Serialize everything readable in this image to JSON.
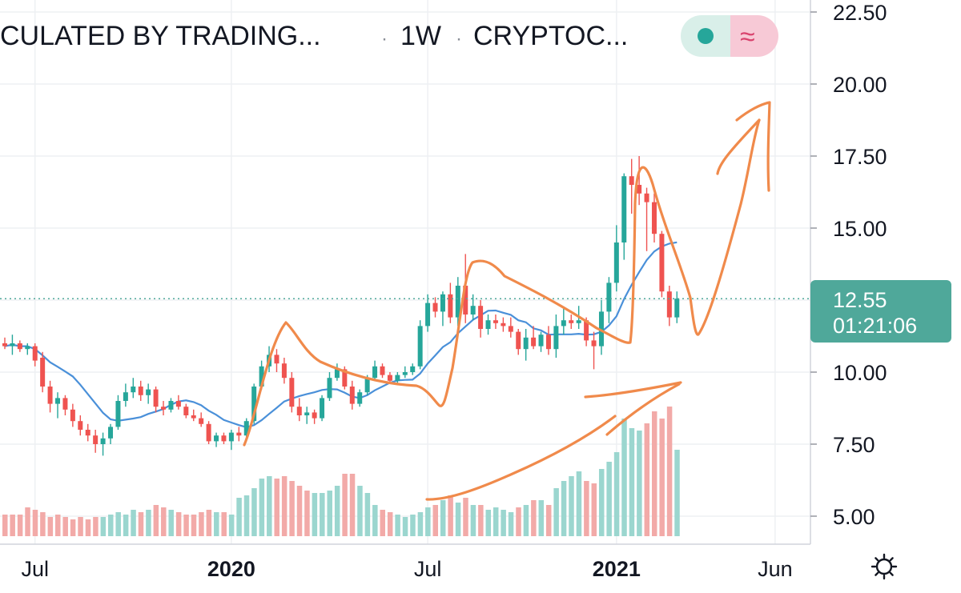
{
  "header": {
    "title_fragment": "CULATED BY TRADING...",
    "sep1": "·",
    "interval": "1W",
    "sep2": "·",
    "exchange_fragment": "CRYPTOC...",
    "toggle_icon_glyph": "≈"
  },
  "price_label": {
    "value": "12.55",
    "countdown": "01:21:06"
  },
  "settings_icon": "gear-icon",
  "colors": {
    "up": "#26a69a",
    "down": "#ef5350",
    "up_volume": "#9bd6cf",
    "down_volume": "#f2aaa8",
    "ma_line": "#4a90d9",
    "annotation": "#f08a4b",
    "price_badge": "#4fa89a",
    "grid": "#eef0f3"
  },
  "chart_data": {
    "type": "candlestick",
    "interval": "1W",
    "ylim": [
      4.2,
      23.2
    ],
    "y_ticks": [
      5.0,
      7.5,
      10.0,
      12.5,
      15.0,
      17.5,
      20.0,
      22.5
    ],
    "y_tick_labels": [
      "5.00",
      "7.50",
      "10.00",
      "",
      "15.00",
      "17.50",
      "20.00",
      "22.50"
    ],
    "x_ticks": [
      {
        "label": "Jul",
        "bold": false,
        "bar": 4
      },
      {
        "label": "2020",
        "bold": true,
        "bar": 30
      },
      {
        "label": "Jul",
        "bold": false,
        "bar": 56
      },
      {
        "label": "2021",
        "bold": true,
        "bar": 81
      },
      {
        "label": "Jun",
        "bold": false,
        "bar": 102
      }
    ],
    "last_price": 12.55,
    "candles": [
      [
        11.0,
        11.2,
        10.8,
        10.9
      ],
      [
        10.9,
        11.3,
        10.6,
        11.0
      ],
      [
        11.0,
        11.1,
        10.7,
        10.8
      ],
      [
        10.8,
        11.0,
        10.6,
        10.9
      ],
      [
        10.9,
        11.0,
        10.2,
        10.4
      ],
      [
        10.5,
        10.7,
        9.3,
        9.5
      ],
      [
        9.5,
        9.7,
        8.6,
        8.9
      ],
      [
        8.9,
        9.3,
        8.4,
        9.1
      ],
      [
        9.1,
        9.2,
        8.5,
        8.7
      ],
      [
        8.7,
        8.9,
        8.1,
        8.3
      ],
      [
        8.3,
        8.5,
        7.8,
        8.0
      ],
      [
        8.0,
        8.2,
        7.6,
        7.8
      ],
      [
        7.8,
        8.0,
        7.2,
        7.5
      ],
      [
        7.5,
        7.9,
        7.1,
        7.7
      ],
      [
        7.7,
        8.2,
        7.5,
        8.1
      ],
      [
        8.1,
        9.2,
        8.0,
        9.0
      ],
      [
        9.0,
        9.6,
        8.8,
        9.3
      ],
      [
        9.3,
        9.8,
        9.1,
        9.5
      ],
      [
        9.5,
        9.7,
        9.0,
        9.2
      ],
      [
        9.2,
        9.6,
        8.9,
        9.4
      ],
      [
        9.4,
        9.5,
        8.6,
        8.8
      ],
      [
        8.8,
        9.0,
        8.5,
        8.7
      ],
      [
        8.7,
        9.1,
        8.6,
        9.0
      ],
      [
        9.0,
        9.2,
        8.7,
        8.8
      ],
      [
        8.8,
        8.9,
        8.4,
        8.5
      ],
      [
        8.5,
        8.7,
        8.3,
        8.4
      ],
      [
        8.4,
        8.6,
        8.1,
        8.2
      ],
      [
        8.2,
        8.3,
        7.5,
        7.6
      ],
      [
        7.6,
        7.9,
        7.4,
        7.8
      ],
      [
        7.8,
        7.9,
        7.5,
        7.6
      ],
      [
        7.6,
        8.0,
        7.3,
        7.9
      ],
      [
        7.9,
        8.1,
        7.6,
        7.8
      ],
      [
        7.8,
        8.4,
        7.7,
        8.3
      ],
      [
        8.3,
        9.6,
        8.2,
        9.5
      ],
      [
        9.5,
        10.4,
        9.4,
        10.2
      ],
      [
        10.2,
        10.9,
        10.0,
        10.6
      ],
      [
        10.6,
        10.8,
        10.0,
        10.3
      ],
      [
        10.3,
        10.5,
        9.6,
        9.8
      ],
      [
        9.8,
        10.0,
        8.6,
        8.8
      ],
      [
        8.8,
        9.1,
        8.3,
        8.5
      ],
      [
        8.5,
        8.8,
        8.2,
        8.6
      ],
      [
        8.6,
        8.7,
        8.2,
        8.4
      ],
      [
        8.4,
        9.2,
        8.3,
        9.1
      ],
      [
        9.1,
        10.0,
        9.0,
        9.8
      ],
      [
        9.8,
        10.3,
        9.7,
        10.1
      ],
      [
        10.1,
        10.2,
        9.4,
        9.5
      ],
      [
        9.5,
        9.7,
        8.7,
        8.9
      ],
      [
        8.9,
        9.4,
        8.8,
        9.3
      ],
      [
        9.3,
        9.9,
        9.2,
        9.8
      ],
      [
        9.8,
        10.4,
        9.7,
        10.2
      ],
      [
        10.2,
        10.3,
        9.8,
        9.9
      ],
      [
        9.9,
        10.0,
        9.6,
        9.7
      ],
      [
        9.7,
        10.0,
        9.6,
        9.9
      ],
      [
        9.9,
        10.2,
        9.8,
        10.0
      ],
      [
        10.0,
        10.3,
        9.9,
        10.2
      ],
      [
        10.2,
        11.8,
        10.1,
        11.6
      ],
      [
        11.6,
        12.7,
        11.4,
        12.4
      ],
      [
        12.4,
        12.6,
        11.9,
        12.1
      ],
      [
        12.1,
        12.8,
        11.6,
        12.7
      ],
      [
        12.7,
        13.1,
        11.7,
        11.9
      ],
      [
        11.9,
        13.3,
        11.6,
        13.0
      ],
      [
        13.0,
        14.1,
        11.7,
        12.0
      ],
      [
        12.0,
        12.7,
        11.8,
        12.3
      ],
      [
        12.3,
        12.5,
        11.2,
        11.5
      ],
      [
        11.5,
        12.0,
        11.3,
        11.8
      ],
      [
        11.8,
        12.0,
        11.5,
        11.7
      ],
      [
        11.7,
        11.9,
        11.4,
        11.6
      ],
      [
        11.6,
        11.9,
        11.2,
        11.4
      ],
      [
        11.4,
        11.5,
        10.6,
        10.8
      ],
      [
        10.8,
        11.5,
        10.4,
        11.2
      ],
      [
        11.2,
        11.6,
        10.8,
        10.9
      ],
      [
        10.9,
        11.4,
        10.7,
        11.3
      ],
      [
        11.3,
        11.6,
        10.6,
        10.8
      ],
      [
        10.8,
        12.0,
        10.5,
        11.6
      ],
      [
        11.6,
        12.2,
        11.3,
        11.8
      ],
      [
        11.8,
        12.0,
        11.5,
        11.7
      ],
      [
        11.7,
        12.3,
        11.5,
        11.8
      ],
      [
        11.8,
        11.9,
        10.9,
        11.1
      ],
      [
        11.1,
        11.4,
        10.1,
        10.9
      ],
      [
        10.9,
        12.5,
        10.6,
        12.1
      ],
      [
        12.1,
        13.3,
        11.7,
        13.1
      ],
      [
        13.1,
        15.1,
        12.8,
        14.5
      ],
      [
        14.5,
        16.9,
        13.9,
        16.8
      ],
      [
        16.8,
        17.4,
        15.5,
        16.5
      ],
      [
        16.5,
        17.5,
        15.8,
        16.2
      ],
      [
        16.2,
        16.4,
        14.2,
        15.9
      ],
      [
        15.9,
        16.2,
        14.5,
        14.8
      ],
      [
        14.8,
        14.9,
        12.6,
        12.8
      ],
      [
        12.8,
        13.0,
        11.6,
        11.9
      ],
      [
        11.9,
        12.8,
        11.7,
        12.55
      ]
    ],
    "volume": [
      [
        0.9,
        0
      ],
      [
        0.9,
        0
      ],
      [
        0.9,
        0
      ],
      [
        1.2,
        0
      ],
      [
        1.1,
        0
      ],
      [
        1.0,
        0
      ],
      [
        0.8,
        0
      ],
      [
        0.9,
        0
      ],
      [
        0.8,
        0
      ],
      [
        0.7,
        0
      ],
      [
        0.8,
        0
      ],
      [
        0.7,
        0
      ],
      [
        0.8,
        0
      ],
      [
        0.8,
        1
      ],
      [
        0.9,
        1
      ],
      [
        1.0,
        1
      ],
      [
        0.9,
        1
      ],
      [
        1.1,
        1
      ],
      [
        1.0,
        0
      ],
      [
        1.1,
        1
      ],
      [
        1.3,
        0
      ],
      [
        1.2,
        0
      ],
      [
        1.1,
        1
      ],
      [
        1.0,
        0
      ],
      [
        0.9,
        0
      ],
      [
        0.9,
        0
      ],
      [
        1.0,
        0
      ],
      [
        1.1,
        0
      ],
      [
        1.0,
        1
      ],
      [
        1.0,
        0
      ],
      [
        0.9,
        1
      ],
      [
        1.6,
        1
      ],
      [
        1.7,
        1
      ],
      [
        2.0,
        1
      ],
      [
        2.4,
        1
      ],
      [
        2.5,
        1
      ],
      [
        2.4,
        0
      ],
      [
        2.5,
        0
      ],
      [
        2.3,
        0
      ],
      [
        2.1,
        0
      ],
      [
        1.9,
        0
      ],
      [
        1.8,
        1
      ],
      [
        1.8,
        1
      ],
      [
        1.9,
        1
      ],
      [
        2.1,
        1
      ],
      [
        2.6,
        0
      ],
      [
        2.6,
        0
      ],
      [
        2.1,
        1
      ],
      [
        1.8,
        1
      ],
      [
        1.3,
        1
      ],
      [
        1.1,
        0
      ],
      [
        1.0,
        0
      ],
      [
        0.9,
        1
      ],
      [
        0.8,
        1
      ],
      [
        0.9,
        1
      ],
      [
        1.0,
        1
      ],
      [
        1.2,
        1
      ],
      [
        1.3,
        0
      ],
      [
        1.5,
        1
      ],
      [
        1.7,
        0
      ],
      [
        1.4,
        1
      ],
      [
        1.6,
        0
      ],
      [
        1.3,
        1
      ],
      [
        1.3,
        0
      ],
      [
        1.1,
        1
      ],
      [
        1.2,
        1
      ],
      [
        1.1,
        1
      ],
      [
        1.0,
        1
      ],
      [
        1.2,
        0
      ],
      [
        1.3,
        1
      ],
      [
        1.5,
        0
      ],
      [
        1.5,
        1
      ],
      [
        1.3,
        0
      ],
      [
        2.0,
        1
      ],
      [
        2.3,
        1
      ],
      [
        2.5,
        1
      ],
      [
        2.7,
        1
      ],
      [
        2.3,
        0
      ],
      [
        2.2,
        0
      ],
      [
        2.8,
        1
      ],
      [
        3.1,
        1
      ],
      [
        3.5,
        1
      ],
      [
        4.9,
        1
      ],
      [
        4.5,
        1
      ],
      [
        4.4,
        1
      ],
      [
        4.7,
        0
      ],
      [
        5.2,
        0
      ],
      [
        4.9,
        0
      ],
      [
        5.4,
        0
      ],
      [
        3.6,
        1
      ]
    ]
  }
}
